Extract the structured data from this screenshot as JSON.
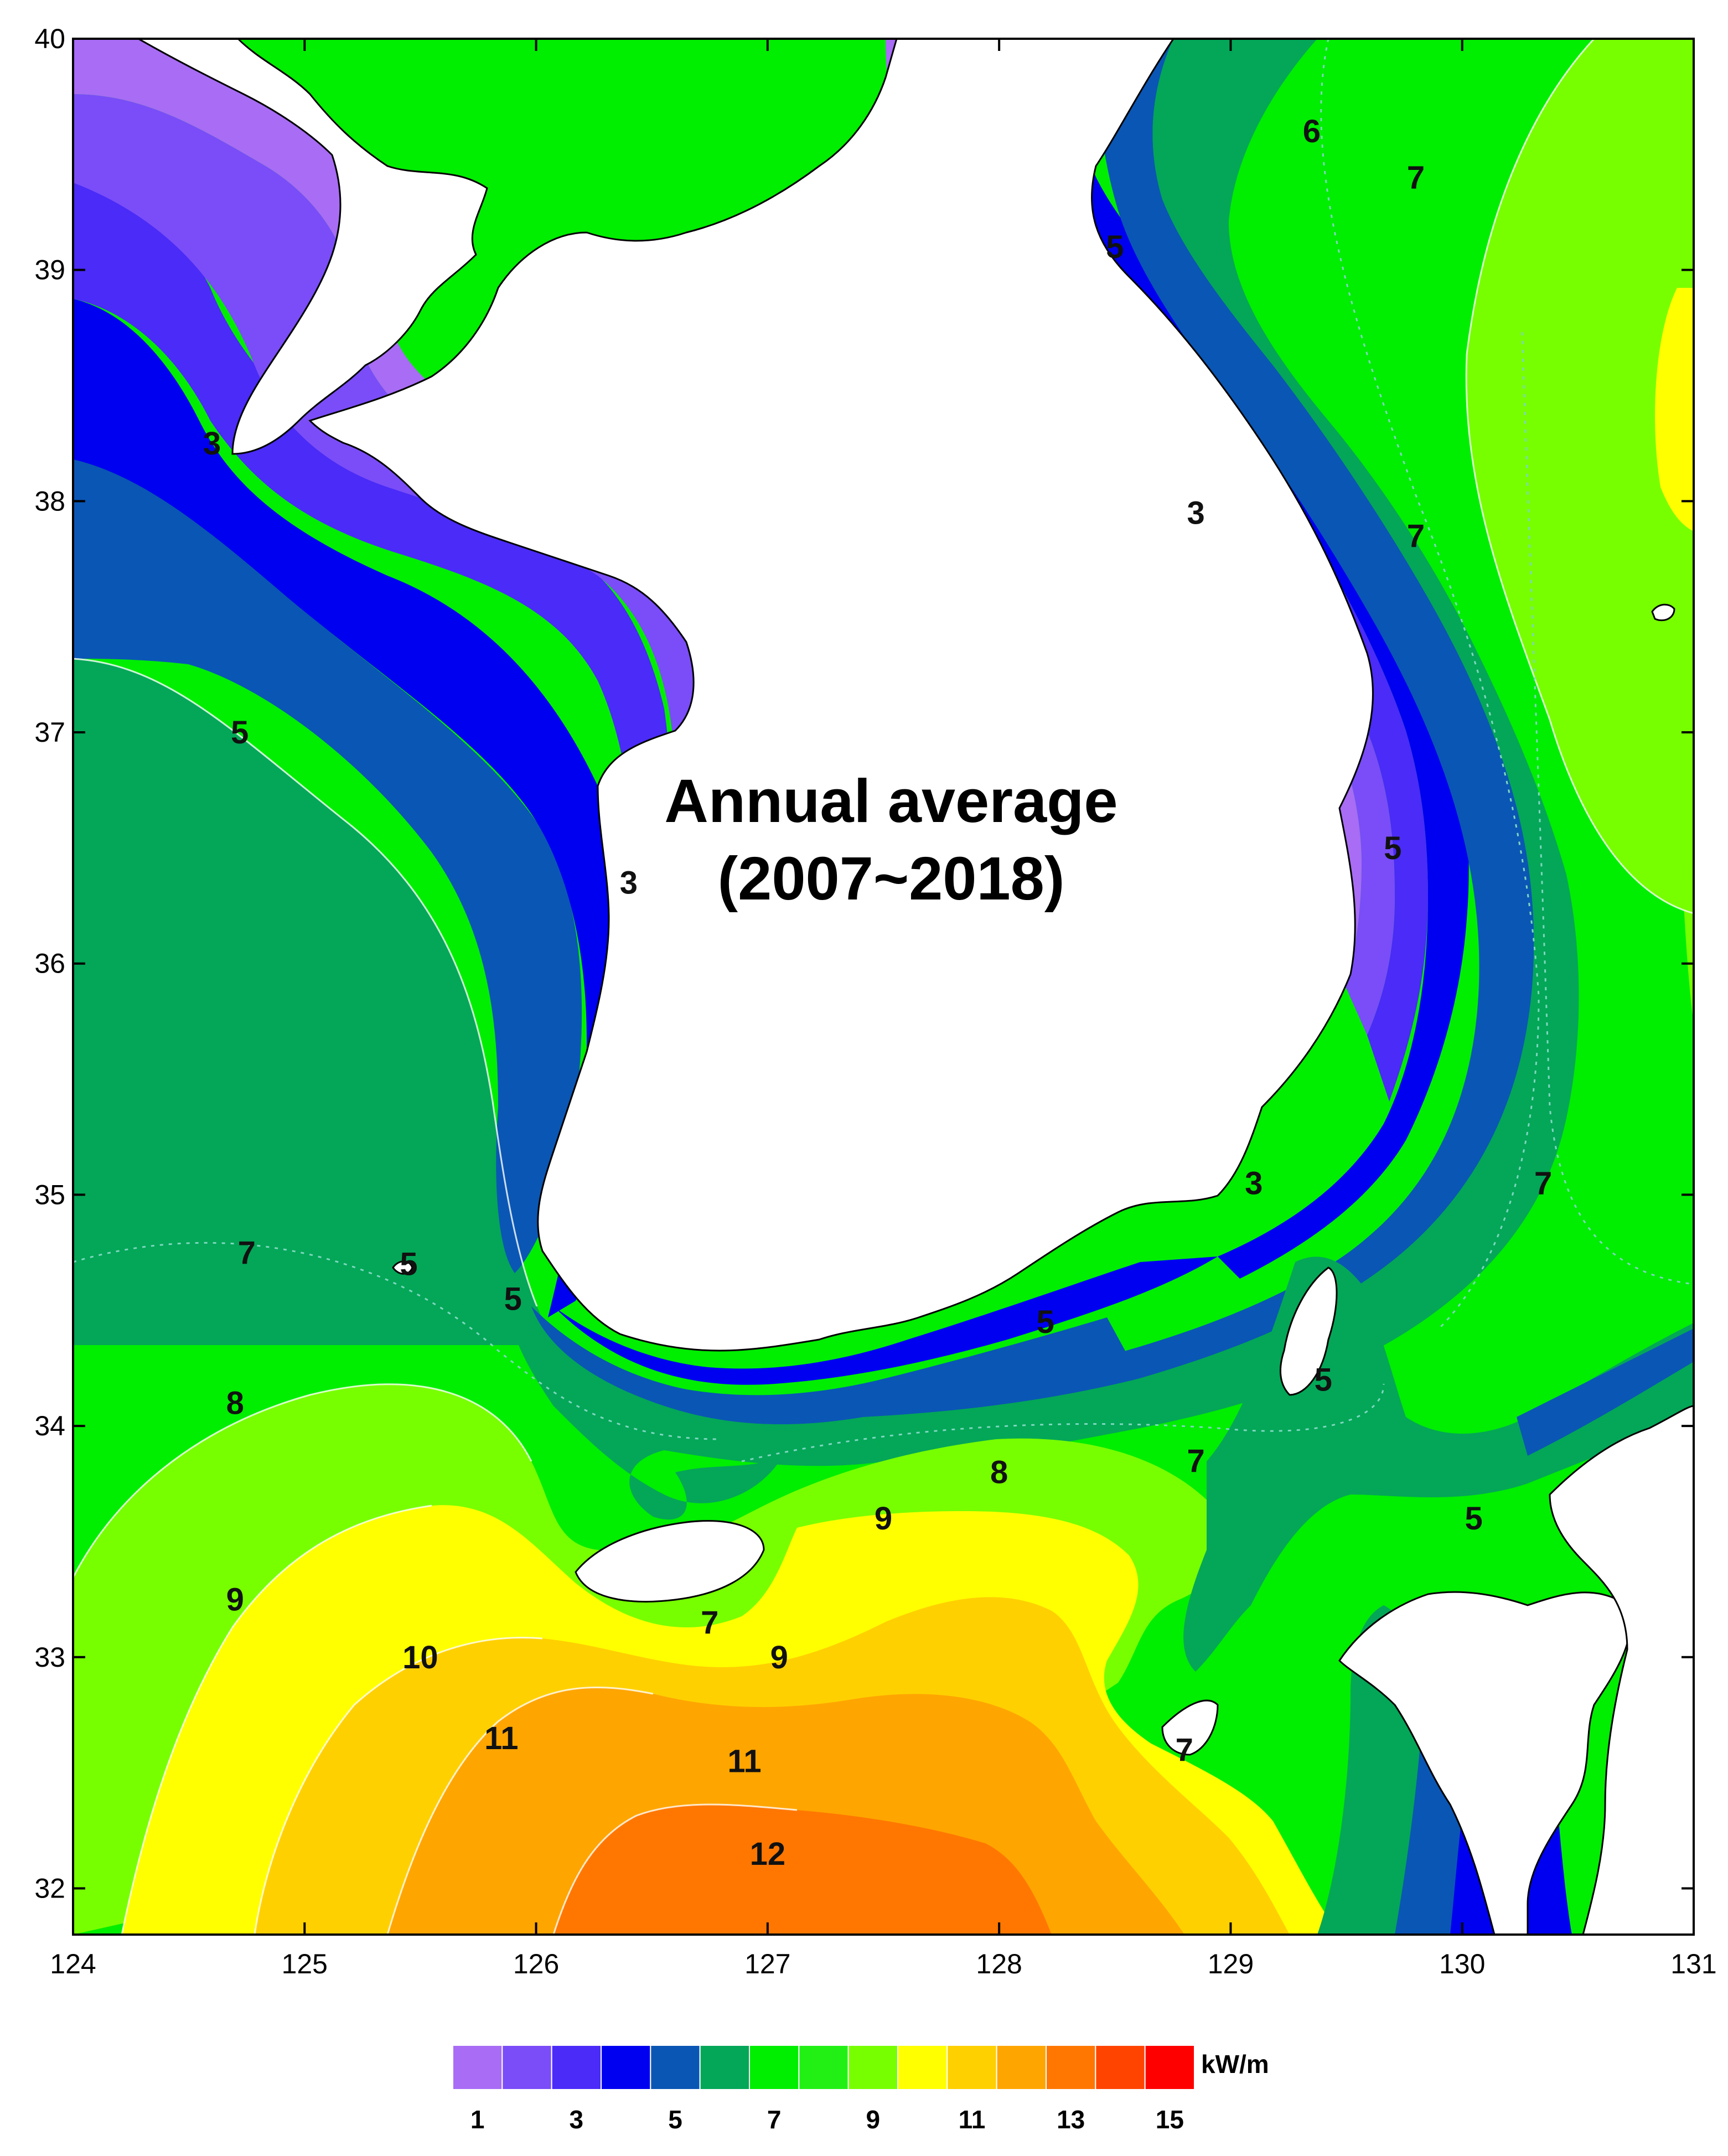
{
  "title": {
    "line1": "Annual average",
    "line2": "(2007~2018)"
  },
  "axes": {
    "x_ticks": [
      "124",
      "125",
      "126",
      "127",
      "128",
      "129",
      "130",
      "131"
    ],
    "y_ticks": [
      "40",
      "39",
      "38",
      "37",
      "36",
      "35",
      "34",
      "33",
      "32"
    ]
  },
  "colorbar": {
    "unit": "kW/m",
    "labels": [
      "1",
      "3",
      "5",
      "7",
      "9",
      "11",
      "13",
      "15"
    ],
    "colors": [
      "#a86cf5",
      "#7a4df8",
      "#4a2bf7",
      "#0000f0",
      "#0a56b4",
      "#03a757",
      "#00ee00",
      "#22f015",
      "#77ff00",
      "#ffff00",
      "#ffd000",
      "#ffa500",
      "#ff7700",
      "#ff4400",
      "#ff0000"
    ]
  },
  "chart_data": {
    "type": "contour-map",
    "lon_range": [
      124,
      131
    ],
    "lat_range": [
      31.8,
      40
    ],
    "unit": "kW/m",
    "contour_labels": [
      {
        "text": "3",
        "lon": 124.6,
        "lat": 38.25
      },
      {
        "text": "5",
        "lon": 124.72,
        "lat": 37.0
      },
      {
        "text": "3",
        "lon": 126.4,
        "lat": 36.35
      },
      {
        "text": "7",
        "lon": 124.75,
        "lat": 34.75
      },
      {
        "text": "5",
        "lon": 125.45,
        "lat": 34.7
      },
      {
        "text": "5",
        "lon": 125.9,
        "lat": 34.55
      },
      {
        "text": "8",
        "lon": 124.7,
        "lat": 34.1
      },
      {
        "text": "9",
        "lon": 124.7,
        "lat": 33.25
      },
      {
        "text": "10",
        "lon": 125.5,
        "lat": 33.0
      },
      {
        "text": "11",
        "lon": 125.85,
        "lat": 32.65
      },
      {
        "text": "11",
        "lon": 126.9,
        "lat": 32.55
      },
      {
        "text": "12",
        "lon": 127.0,
        "lat": 32.15
      },
      {
        "text": "7",
        "lon": 126.75,
        "lat": 33.15
      },
      {
        "text": "9",
        "lon": 127.05,
        "lat": 33.0
      },
      {
        "text": "9",
        "lon": 127.5,
        "lat": 33.6
      },
      {
        "text": "8",
        "lon": 128.0,
        "lat": 33.8
      },
      {
        "text": "7",
        "lon": 128.85,
        "lat": 33.85
      },
      {
        "text": "5",
        "lon": 128.2,
        "lat": 34.45
      },
      {
        "text": "5",
        "lon": 129.4,
        "lat": 34.2
      },
      {
        "text": "5",
        "lon": 130.05,
        "lat": 33.6
      },
      {
        "text": "7",
        "lon": 128.8,
        "lat": 32.6
      },
      {
        "text": "5",
        "lon": 128.5,
        "lat": 39.1
      },
      {
        "text": "6",
        "lon": 129.35,
        "lat": 39.6
      },
      {
        "text": "7",
        "lon": 129.8,
        "lat": 39.4
      },
      {
        "text": "3",
        "lon": 128.85,
        "lat": 37.95
      },
      {
        "text": "7",
        "lon": 129.8,
        "lat": 37.85
      },
      {
        "text": "5",
        "lon": 129.7,
        "lat": 36.5
      },
      {
        "text": "3",
        "lon": 129.1,
        "lat": 35.05
      },
      {
        "text": "7",
        "lon": 130.35,
        "lat": 35.05
      }
    ]
  }
}
